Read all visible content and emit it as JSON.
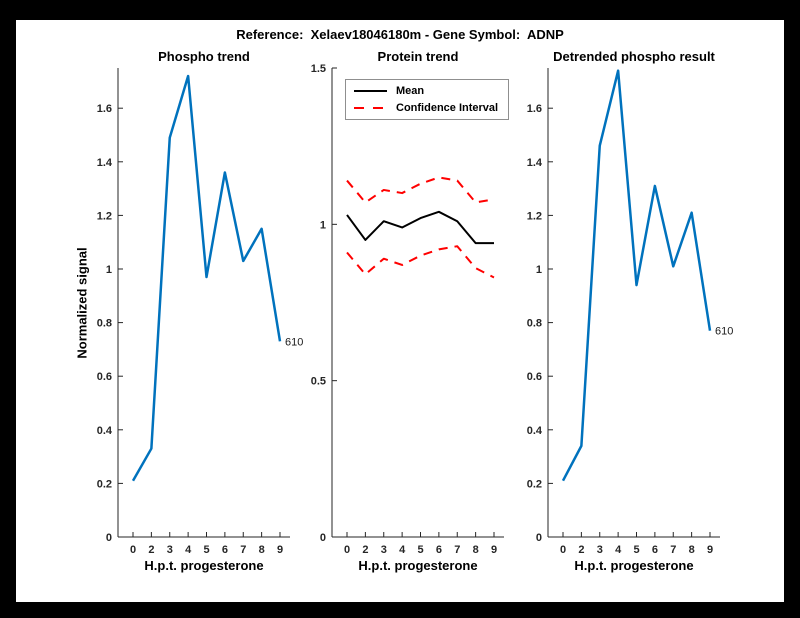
{
  "figure": {
    "title": "Reference:  Xelaev18046180m - Gene Symbol:  ADNP"
  },
  "colors": {
    "background": "#000000",
    "canvas": "#FFFFFF",
    "axis": "#262626",
    "line_blue": "#0072BD",
    "mean_black": "#000000",
    "ci_red": "#FF0000"
  },
  "chart_data": [
    {
      "type": "line",
      "title": "Phospho trend",
      "xlabel": "H.p.t. progesterone",
      "ylabel": "Normalized signal",
      "categories": [
        "0",
        "2",
        "3",
        "4",
        "5",
        "6",
        "7",
        "8",
        "9"
      ],
      "ylim": [
        0,
        1.75
      ],
      "yticks": [
        "0",
        "0.2",
        "0.4",
        "0.6",
        "0.8",
        "1",
        "1.2",
        "1.4",
        "1.6"
      ],
      "grid": false,
      "series": [
        {
          "name": "Phospho trend",
          "color": "#0072BD",
          "style": "solid",
          "width": 2.5,
          "values": [
            0.21,
            0.33,
            1.49,
            1.72,
            0.97,
            1.36,
            1.03,
            1.15,
            0.73
          ]
        }
      ],
      "annotation": {
        "text": "610"
      }
    },
    {
      "type": "line",
      "title": "Protein trend",
      "xlabel": "H.p.t. progesterone",
      "ylabel": "",
      "categories": [
        "0",
        "2",
        "3",
        "4",
        "5",
        "6",
        "7",
        "8",
        "9"
      ],
      "ylim": [
        0,
        1.5
      ],
      "yticks": [
        "0",
        "0.5",
        "1",
        "1.5"
      ],
      "grid": false,
      "series": [
        {
          "name": "Mean",
          "color": "#000000",
          "style": "solid",
          "width": 2,
          "values": [
            1.03,
            0.95,
            1.01,
            0.99,
            1.02,
            1.04,
            1.01,
            0.94,
            0.94
          ]
        },
        {
          "name": "Confidence Interval (upper)",
          "color": "#FF0000",
          "style": "dashed",
          "width": 2,
          "values": [
            1.14,
            1.07,
            1.11,
            1.1,
            1.13,
            1.15,
            1.14,
            1.07,
            1.08
          ]
        },
        {
          "name": "Confidence Interval (lower)",
          "color": "#FF0000",
          "style": "dashed",
          "width": 2,
          "values": [
            0.91,
            0.84,
            0.89,
            0.87,
            0.9,
            0.92,
            0.93,
            0.86,
            0.83
          ]
        }
      ],
      "legend": {
        "position": "top-left",
        "entries": [
          {
            "label": "Mean",
            "color": "#000000",
            "style": "solid"
          },
          {
            "label": "Confidence Interval",
            "color": "#FF0000",
            "style": "dashed"
          }
        ]
      }
    },
    {
      "type": "line",
      "title": "Detrended phospho result",
      "xlabel": "H.p.t. progesterone",
      "ylabel": "",
      "categories": [
        "0",
        "2",
        "3",
        "4",
        "5",
        "6",
        "7",
        "8",
        "9"
      ],
      "ylim": [
        0,
        1.75
      ],
      "yticks": [
        "0",
        "0.2",
        "0.4",
        "0.6",
        "0.8",
        "1",
        "1.2",
        "1.4",
        "1.6"
      ],
      "grid": false,
      "series": [
        {
          "name": "Detrended phospho",
          "color": "#0072BD",
          "style": "solid",
          "width": 2.5,
          "values": [
            0.21,
            0.34,
            1.46,
            1.74,
            0.94,
            1.31,
            1.01,
            1.21,
            0.77
          ]
        }
      ],
      "annotation": {
        "text": "610"
      }
    }
  ]
}
